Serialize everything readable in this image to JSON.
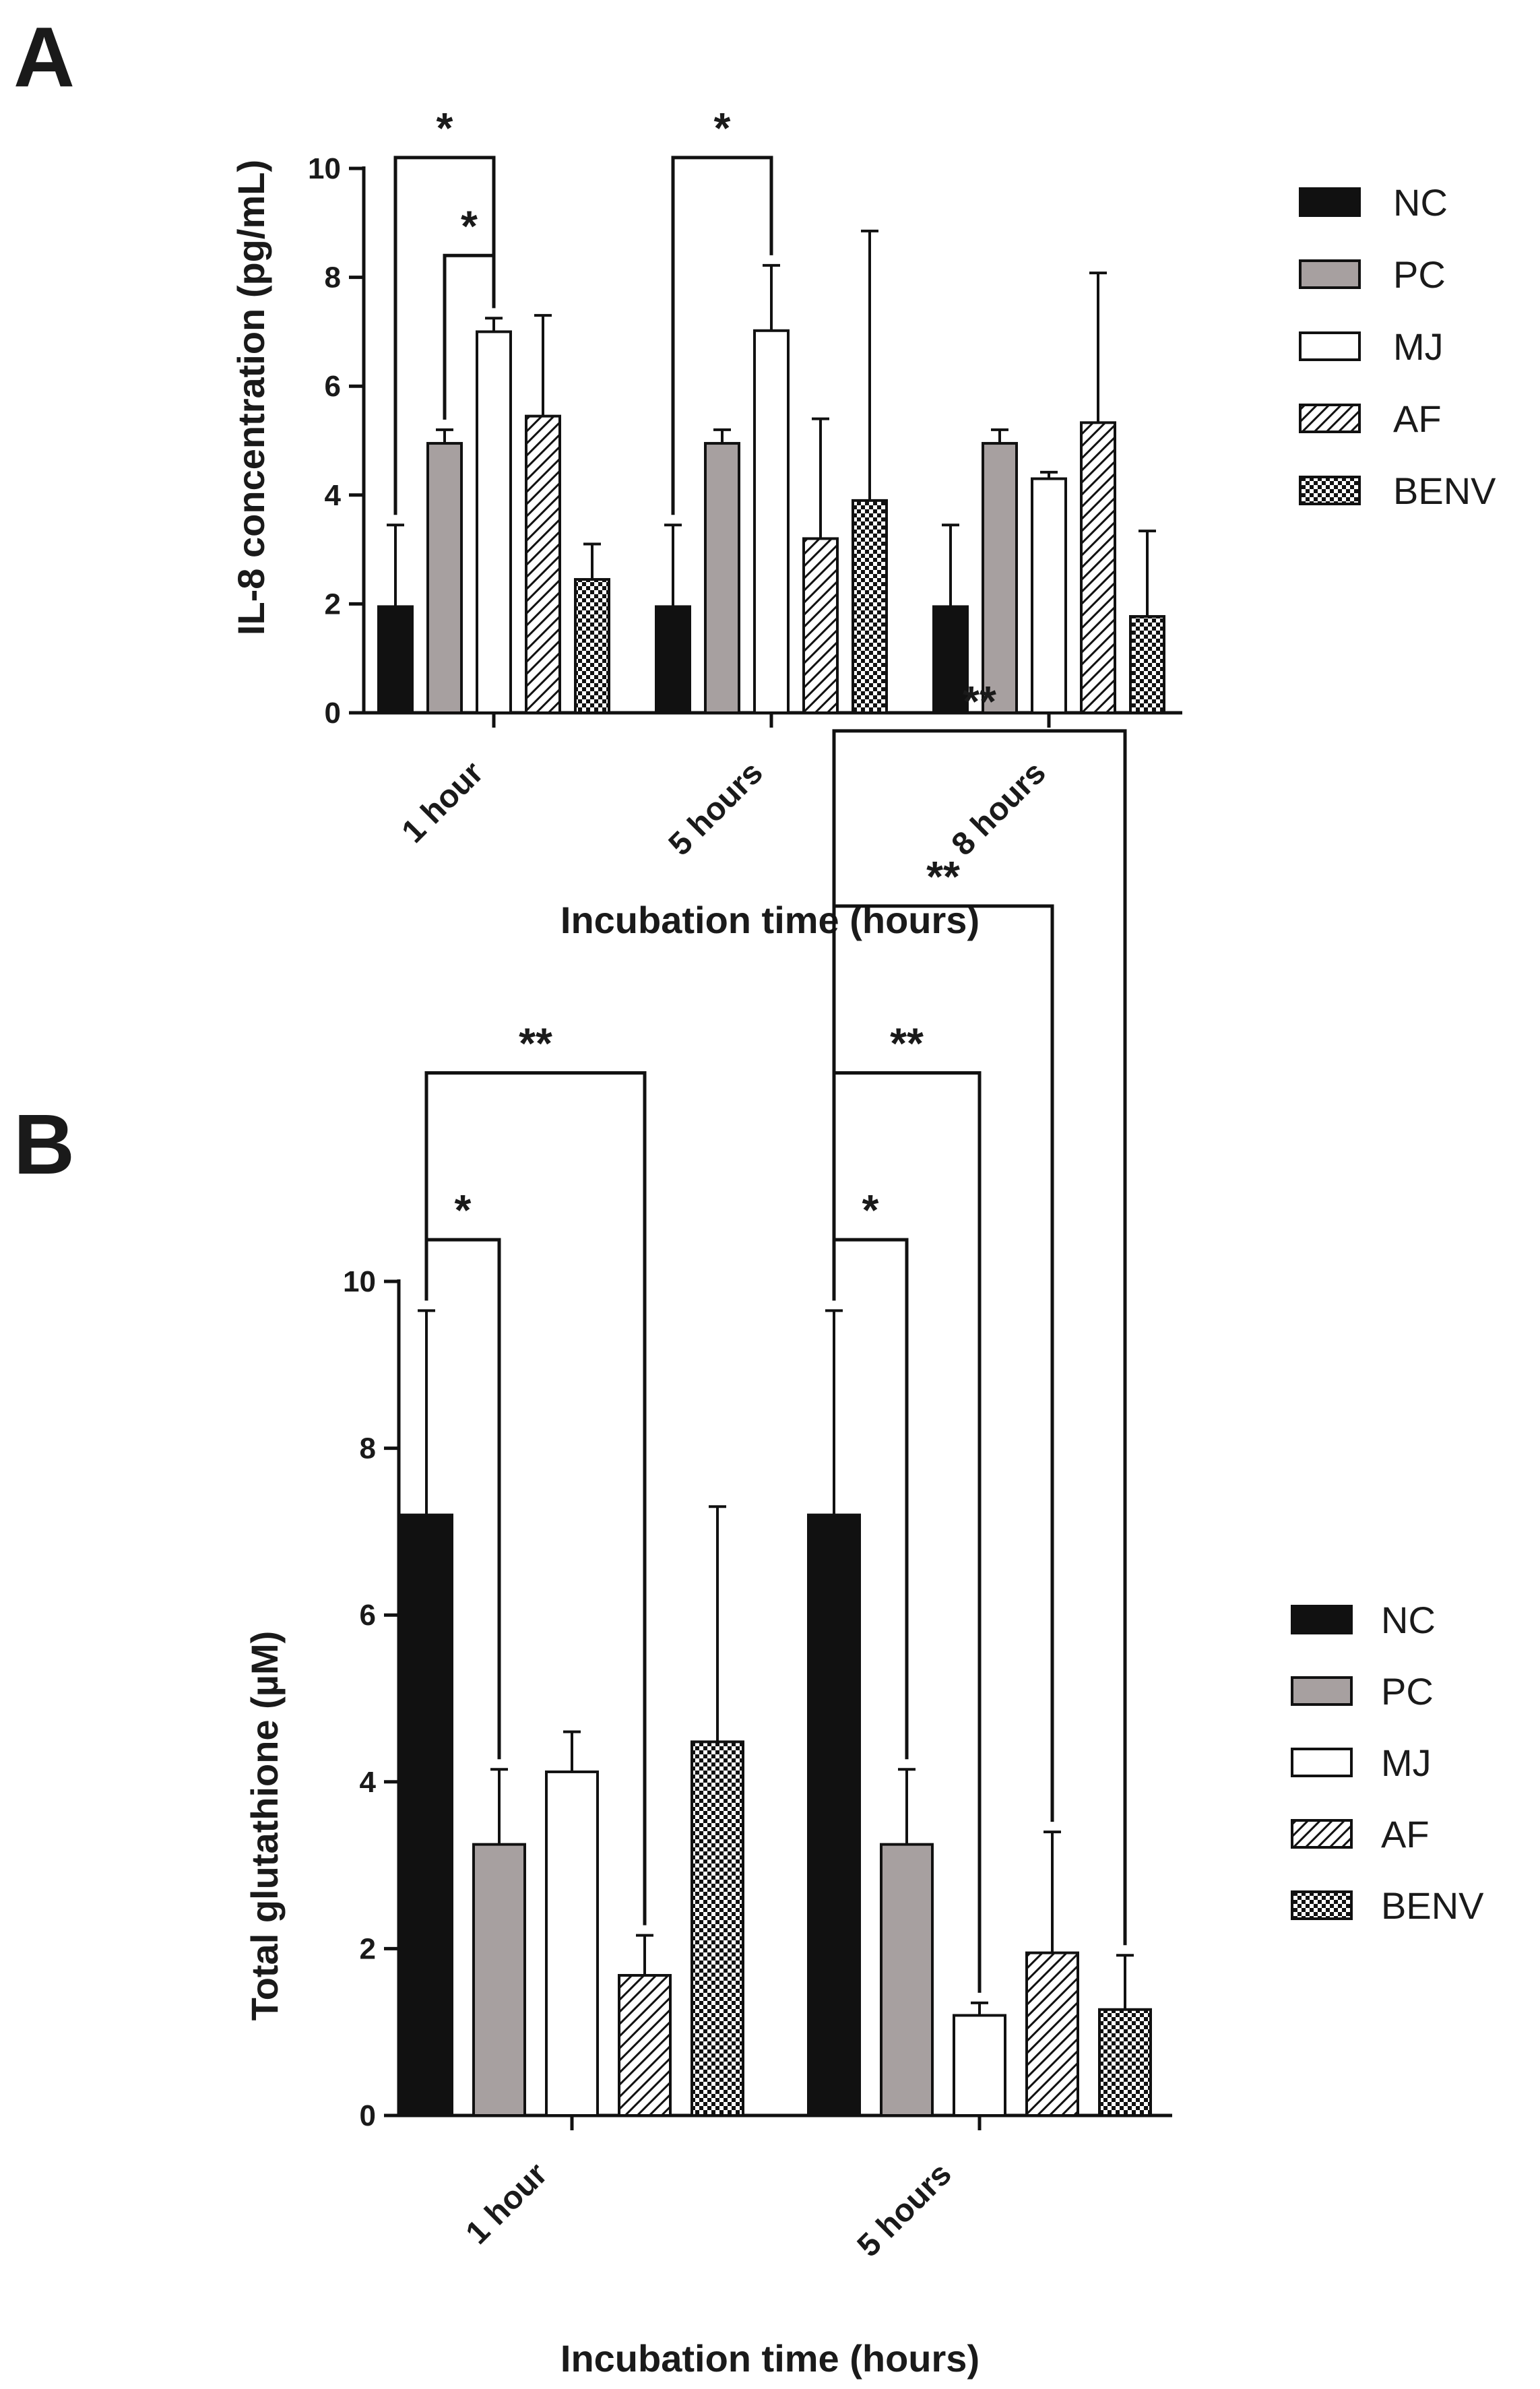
{
  "figure": {
    "patterns": [
      {
        "name": "NC",
        "fill": "solid",
        "color": "#111111"
      },
      {
        "name": "PC",
        "fill": "solid",
        "color": "#a7a0a0"
      },
      {
        "name": "MJ",
        "fill": "open",
        "color": "#ffffff"
      },
      {
        "name": "AF",
        "fill": "hatch",
        "color": "#111111"
      },
      {
        "name": "BENV",
        "fill": "checker",
        "color": "#111111"
      }
    ]
  },
  "chart_data": [
    {
      "panel": "A",
      "type": "bar",
      "xlabel": "Incubation time (hours)",
      "ylabel": "IL-8 concentration (pg/mL)",
      "ylim": [
        0,
        10
      ],
      "yticks": [
        "0",
        "2",
        "4",
        "6",
        "8",
        "10"
      ],
      "categories": [
        "1 hour",
        "5 hours",
        "8 hours"
      ],
      "series": [
        {
          "name": "NC",
          "values": [
            1.95,
            1.95,
            1.95
          ],
          "errors": [
            1.5,
            1.5,
            1.5
          ]
        },
        {
          "name": "PC",
          "values": [
            4.95,
            4.95,
            4.95
          ],
          "errors": [
            0.25,
            0.25,
            0.25
          ]
        },
        {
          "name": "MJ",
          "values": [
            7.0,
            7.02,
            4.3
          ],
          "errors": [
            0.25,
            1.2,
            0.12
          ]
        },
        {
          "name": "AF",
          "values": [
            5.45,
            3.2,
            5.33
          ],
          "errors": [
            1.85,
            2.2,
            2.75
          ]
        },
        {
          "name": "BENV",
          "values": [
            2.45,
            3.9,
            1.77
          ],
          "errors": [
            0.65,
            4.95,
            1.57
          ]
        }
      ],
      "legend": [
        "NC",
        "PC",
        "MJ",
        "AF",
        "BENV"
      ],
      "significance": [
        {
          "category": 0,
          "from": 0,
          "to": 2,
          "level": 10.2,
          "label": "*"
        },
        {
          "category": 0,
          "from": 1,
          "to": 2,
          "level": 8.4,
          "label": "*"
        },
        {
          "category": 1,
          "from": 0,
          "to": 2,
          "level": 10.2,
          "label": "*"
        }
      ]
    },
    {
      "panel": "B",
      "type": "bar",
      "xlabel": "Incubation time (hours)",
      "ylabel": "Total glutathione (µM)",
      "ylim": [
        0,
        10
      ],
      "yticks": [
        "0",
        "2",
        "4",
        "6",
        "8",
        "10"
      ],
      "categories": [
        "1 hour",
        "5 hours"
      ],
      "series": [
        {
          "name": "NC",
          "values": [
            7.2,
            7.2
          ],
          "errors": [
            2.45,
            2.45
          ]
        },
        {
          "name": "PC",
          "values": [
            3.25,
            3.25
          ],
          "errors": [
            0.9,
            0.9
          ]
        },
        {
          "name": "MJ",
          "values": [
            4.12,
            1.2
          ],
          "errors": [
            0.48,
            0.15
          ]
        },
        {
          "name": "AF",
          "values": [
            1.68,
            1.95
          ],
          "errors": [
            0.48,
            1.45
          ]
        },
        {
          "name": "BENV",
          "values": [
            4.48,
            1.27
          ],
          "errors": [
            2.82,
            0.65
          ]
        }
      ],
      "legend": [
        "NC",
        "PC",
        "MJ",
        "AF",
        "BENV"
      ],
      "significance": [
        {
          "category": 0,
          "from": 0,
          "to": 1,
          "level": 10.5,
          "label": "*"
        },
        {
          "category": 0,
          "from": 0,
          "to": 3,
          "level": 12.5,
          "label": "**"
        },
        {
          "category": 1,
          "from": 0,
          "to": 1,
          "level": 10.5,
          "label": "*"
        },
        {
          "category": 1,
          "from": 0,
          "to": 2,
          "level": 12.5,
          "label": "**"
        },
        {
          "category": 1,
          "from": 0,
          "to": 3,
          "level": 14.5,
          "label": "**"
        },
        {
          "category": 1,
          "from": 0,
          "to": 4,
          "level": 16.6,
          "label": "**"
        }
      ]
    }
  ]
}
